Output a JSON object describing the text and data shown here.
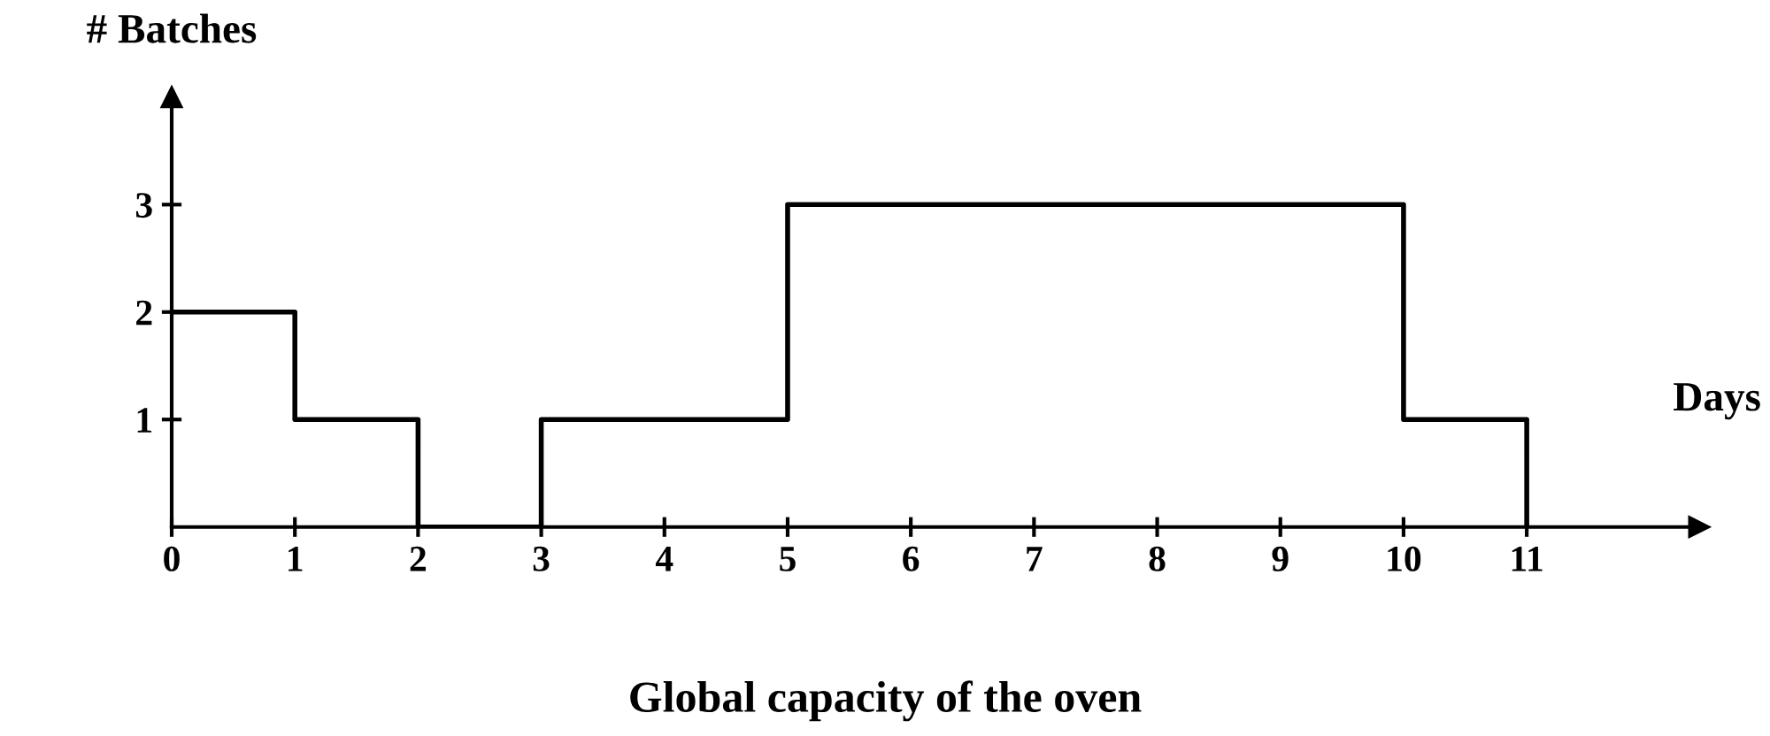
{
  "chart_data": {
    "type": "step",
    "title": "Global capacity of the oven",
    "xlabel": "Days",
    "ylabel": "# Batches",
    "x": [
      0,
      1,
      2,
      3,
      4,
      5,
      6,
      7,
      8,
      9,
      10,
      11
    ],
    "series": [
      {
        "color": "#000000",
        "values": [
          2,
          1,
          0,
          1,
          1,
          3,
          3,
          3,
          3,
          3,
          1,
          0
        ]
      }
    ],
    "xlim": [
      0,
      12.4
    ],
    "ylim": [
      0,
      4
    ],
    "xticks": [
      0,
      1,
      2,
      3,
      4,
      5,
      6,
      7,
      8,
      9,
      10,
      11
    ],
    "yticks": [
      1,
      2,
      3
    ],
    "grid": false,
    "line_style": "solid"
  }
}
